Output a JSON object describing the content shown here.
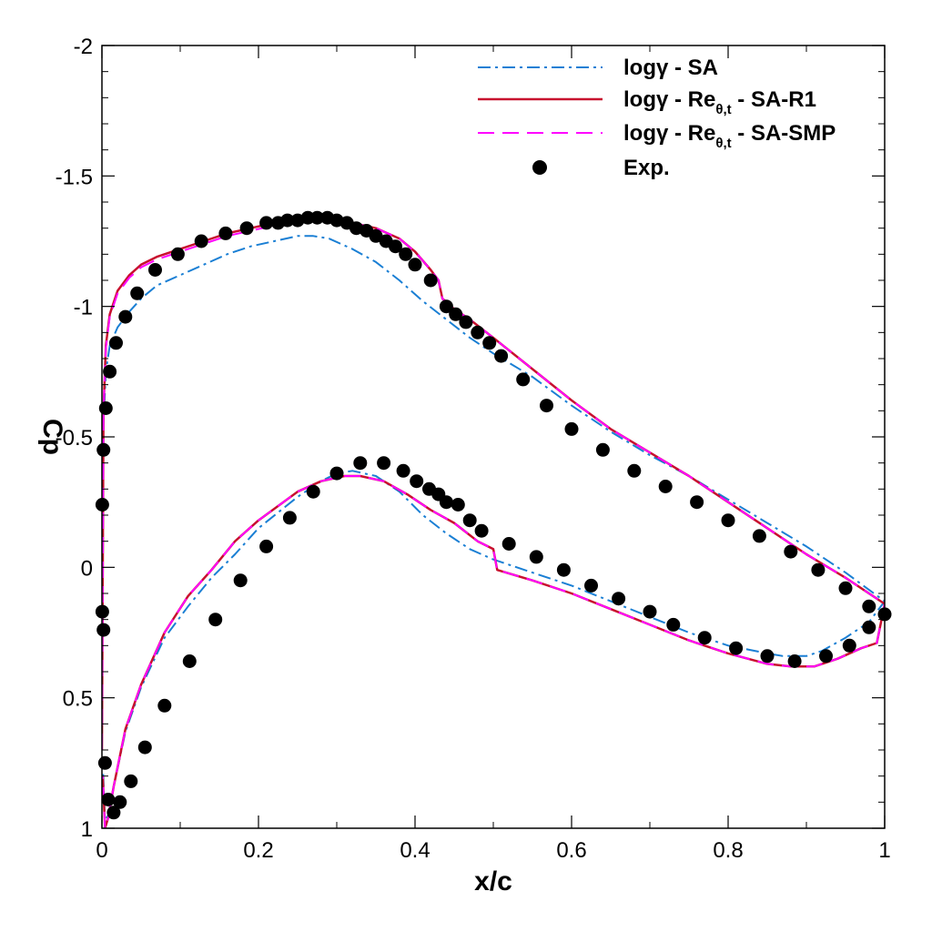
{
  "chart_data": {
    "type": "line",
    "xlabel": "x/c",
    "ylabel": "Cp",
    "xlim": [
      0,
      1
    ],
    "ylim": [
      -2,
      1
    ],
    "y_inverted": true,
    "grid": false,
    "legend_position": "top-right",
    "x_ticks": [
      0,
      0.2,
      0.4,
      0.6,
      0.8,
      1
    ],
    "x_tick_labels": [
      "0",
      "0.2",
      "0.4",
      "0.6",
      "0.8",
      "1"
    ],
    "y_ticks": [
      -2,
      -1.5,
      -1,
      -0.5,
      0,
      0.5,
      1
    ],
    "y_tick_labels": [
      "-2",
      "-1.5",
      "-1",
      "-0.5",
      "0",
      "0.5",
      "1"
    ],
    "colors": {
      "sa": "#1a7fd4",
      "r1": "#c8102e",
      "smp": "#ff00ff",
      "exp": "#000000"
    },
    "legend": [
      {
        "main": "logγ - SA"
      },
      {
        "main": "logγ - Re",
        "sub": "θ,t",
        "tail": " - SA-R1"
      },
      {
        "main": "logγ - Re",
        "sub": "θ,t",
        "tail": " - SA-SMP"
      },
      {
        "main": "Exp."
      }
    ],
    "series": [
      {
        "name": "logγ - SA",
        "style": "dashdot",
        "color": "#1a7fd4",
        "x": [
          0,
          0.002,
          0.005,
          0.01,
          0.02,
          0.035,
          0.05,
          0.07,
          0.1,
          0.13,
          0.16,
          0.19,
          0.22,
          0.25,
          0.27,
          0.29,
          0.32,
          0.35,
          0.38,
          0.41,
          0.44,
          0.47,
          0.5,
          0.55,
          0.6,
          0.65,
          0.7,
          0.75,
          0.8,
          0.85,
          0.9,
          0.95,
          1.0,
          0.98,
          0.95,
          0.92,
          0.9,
          0.87,
          0.85,
          0.8,
          0.75,
          0.7,
          0.65,
          0.6,
          0.55,
          0.5,
          0.47,
          0.44,
          0.41,
          0.38,
          0.35,
          0.32,
          0.3,
          0.28,
          0.25,
          0.2,
          0.17,
          0.14,
          0.11,
          0.08,
          0.05,
          0.03,
          0.015,
          0.008,
          0.004,
          0.001
        ],
        "y": [
          0.7,
          -0.55,
          -0.75,
          -0.85,
          -0.92,
          -0.98,
          -1.03,
          -1.08,
          -1.12,
          -1.16,
          -1.2,
          -1.23,
          -1.25,
          -1.27,
          -1.27,
          -1.26,
          -1.22,
          -1.17,
          -1.1,
          -1.02,
          -0.95,
          -0.88,
          -0.82,
          -0.73,
          -0.62,
          -0.52,
          -0.43,
          -0.35,
          -0.26,
          -0.17,
          -0.08,
          0.02,
          0.13,
          0.21,
          0.27,
          0.32,
          0.34,
          0.34,
          0.33,
          0.3,
          0.25,
          0.19,
          0.13,
          0.07,
          0.02,
          -0.03,
          -0.07,
          -0.13,
          -0.2,
          -0.29,
          -0.35,
          -0.37,
          -0.36,
          -0.33,
          -0.27,
          -0.15,
          -0.05,
          0.04,
          0.15,
          0.27,
          0.46,
          0.63,
          0.84,
          0.95,
          0.97,
          0.75
        ]
      },
      {
        "name": "logγ - Reθ,t - SA-R1",
        "style": "solid",
        "color": "#c8102e",
        "x": [
          0,
          0.002,
          0.005,
          0.01,
          0.02,
          0.035,
          0.05,
          0.07,
          0.1,
          0.13,
          0.16,
          0.19,
          0.22,
          0.25,
          0.28,
          0.3,
          0.32,
          0.35,
          0.38,
          0.4,
          0.42,
          0.43,
          0.435,
          0.45,
          0.47,
          0.5,
          0.55,
          0.6,
          0.65,
          0.7,
          0.75,
          0.8,
          0.85,
          0.9,
          0.95,
          1.0,
          0.99,
          0.97,
          0.94,
          0.91,
          0.88,
          0.85,
          0.8,
          0.75,
          0.7,
          0.65,
          0.6,
          0.55,
          0.505,
          0.5,
          0.48,
          0.45,
          0.42,
          0.39,
          0.36,
          0.33,
          0.31,
          0.28,
          0.25,
          0.2,
          0.17,
          0.14,
          0.11,
          0.08,
          0.05,
          0.03,
          0.015,
          0.008,
          0.004,
          0.001
        ],
        "y": [
          0.7,
          -0.6,
          -0.85,
          -0.97,
          -1.06,
          -1.12,
          -1.16,
          -1.19,
          -1.22,
          -1.25,
          -1.28,
          -1.3,
          -1.32,
          -1.33,
          -1.34,
          -1.33,
          -1.32,
          -1.3,
          -1.26,
          -1.21,
          -1.14,
          -1.1,
          -1.03,
          -0.99,
          -0.95,
          -0.88,
          -0.76,
          -0.64,
          -0.53,
          -0.44,
          -0.35,
          -0.25,
          -0.15,
          -0.05,
          0.04,
          0.14,
          0.29,
          0.31,
          0.35,
          0.38,
          0.38,
          0.37,
          0.33,
          0.28,
          0.22,
          0.16,
          0.1,
          0.05,
          0.01,
          -0.07,
          -0.1,
          -0.17,
          -0.22,
          -0.28,
          -0.33,
          -0.35,
          -0.35,
          -0.33,
          -0.29,
          -0.18,
          -0.1,
          0.01,
          0.11,
          0.25,
          0.45,
          0.62,
          0.84,
          0.96,
          1.0,
          0.8
        ]
      },
      {
        "name": "logγ - Reθ,t - SA-SMP",
        "style": "dashed",
        "color": "#ff00ff",
        "x": [
          0,
          0.002,
          0.005,
          0.01,
          0.02,
          0.035,
          0.05,
          0.07,
          0.1,
          0.13,
          0.16,
          0.19,
          0.22,
          0.25,
          0.28,
          0.3,
          0.32,
          0.35,
          0.38,
          0.4,
          0.42,
          0.43,
          0.435,
          0.45,
          0.47,
          0.5,
          0.55,
          0.6,
          0.65,
          0.7,
          0.75,
          0.8,
          0.85,
          0.9,
          0.95,
          1.0,
          0.99,
          0.97,
          0.94,
          0.91,
          0.88,
          0.85,
          0.8,
          0.75,
          0.7,
          0.65,
          0.6,
          0.55,
          0.505,
          0.5,
          0.48,
          0.45,
          0.42,
          0.39,
          0.36,
          0.33,
          0.31,
          0.28,
          0.25,
          0.2,
          0.17,
          0.14,
          0.11,
          0.08,
          0.05,
          0.03,
          0.015,
          0.008,
          0.004,
          0.001
        ],
        "y": [
          0.7,
          -0.6,
          -0.84,
          -0.96,
          -1.05,
          -1.11,
          -1.15,
          -1.18,
          -1.21,
          -1.24,
          -1.27,
          -1.29,
          -1.31,
          -1.32,
          -1.33,
          -1.33,
          -1.32,
          -1.3,
          -1.26,
          -1.21,
          -1.14,
          -1.1,
          -1.03,
          -0.99,
          -0.95,
          -0.88,
          -0.76,
          -0.64,
          -0.53,
          -0.44,
          -0.35,
          -0.25,
          -0.15,
          -0.05,
          0.04,
          0.14,
          0.29,
          0.31,
          0.35,
          0.38,
          0.38,
          0.37,
          0.33,
          0.28,
          0.22,
          0.16,
          0.1,
          0.05,
          0.01,
          -0.07,
          -0.1,
          -0.17,
          -0.22,
          -0.28,
          -0.33,
          -0.35,
          -0.35,
          -0.33,
          -0.29,
          -0.18,
          -0.1,
          0.01,
          0.11,
          0.25,
          0.45,
          0.62,
          0.84,
          0.96,
          1.0,
          0.8
        ]
      }
    ],
    "experiment": {
      "name": "Exp.",
      "x": [
        0.0005,
        0.002,
        0.005,
        0.01,
        0.018,
        0.03,
        0.045,
        0.068,
        0.097,
        0.127,
        0.158,
        0.185,
        0.21,
        0.225,
        0.237,
        0.25,
        0.263,
        0.275,
        0.288,
        0.3,
        0.313,
        0.325,
        0.338,
        0.35,
        0.363,
        0.375,
        0.388,
        0.4,
        0.42,
        0.44,
        0.452,
        0.465,
        0.48,
        0.495,
        0.51,
        0.538,
        0.568,
        0.6,
        0.64,
        0.68,
        0.72,
        0.76,
        0.8,
        0.84,
        0.88,
        0.915,
        0.95,
        0.98,
        1.0,
        0.98,
        0.955,
        0.925,
        0.885,
        0.85,
        0.81,
        0.77,
        0.73,
        0.7,
        0.66,
        0.625,
        0.59,
        0.555,
        0.52,
        0.485,
        0.47,
        0.455,
        0.44,
        0.43,
        0.418,
        0.402,
        0.385,
        0.36,
        0.33,
        0.3,
        0.27,
        0.24,
        0.21,
        0.177,
        0.145,
        0.112,
        0.08,
        0.055,
        0.037,
        0.023,
        0.015,
        0.008,
        0.004,
        0.002,
        0.0005
      ],
      "y": [
        -0.24,
        -0.45,
        -0.61,
        -0.75,
        -0.86,
        -0.96,
        -1.05,
        -1.14,
        -1.2,
        -1.25,
        -1.28,
        -1.3,
        -1.32,
        -1.32,
        -1.33,
        -1.33,
        -1.34,
        -1.34,
        -1.34,
        -1.33,
        -1.32,
        -1.3,
        -1.29,
        -1.27,
        -1.25,
        -1.23,
        -1.2,
        -1.16,
        -1.1,
        -1.0,
        -0.97,
        -0.94,
        -0.9,
        -0.86,
        -0.81,
        -0.72,
        -0.62,
        -0.53,
        -0.45,
        -0.37,
        -0.31,
        -0.25,
        -0.18,
        -0.12,
        -0.06,
        0.01,
        0.08,
        0.15,
        0.18,
        0.23,
        0.3,
        0.34,
        0.36,
        0.34,
        0.31,
        0.27,
        0.22,
        0.17,
        0.12,
        0.07,
        0.01,
        -0.04,
        -0.09,
        -0.14,
        -0.18,
        -0.24,
        -0.25,
        -0.28,
        -0.3,
        -0.33,
        -0.37,
        -0.4,
        -0.4,
        -0.36,
        -0.29,
        -0.19,
        -0.08,
        0.05,
        0.2,
        0.36,
        0.53,
        0.69,
        0.82,
        0.9,
        0.94,
        0.89,
        0.75,
        0.24,
        0.17
      ]
    }
  }
}
